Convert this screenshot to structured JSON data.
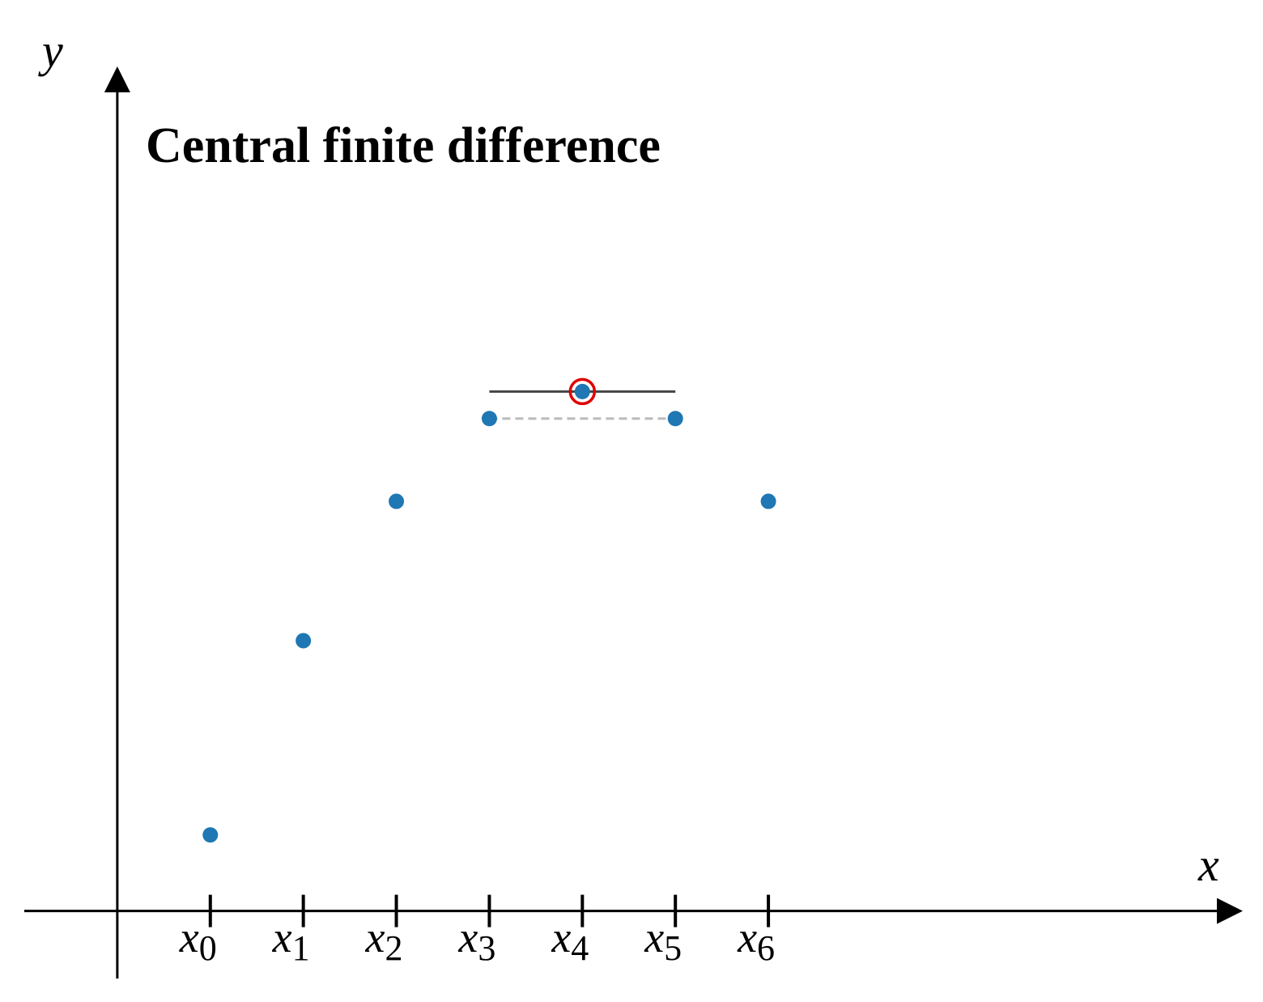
{
  "chart_data": {
    "type": "scatter",
    "title": "Central finite difference",
    "x_label": "x",
    "y_label": "y",
    "x": [
      1,
      2,
      3,
      4,
      5,
      6,
      7
    ],
    "values": [
      0.9,
      3.2,
      4.85,
      5.83,
      6.15,
      5.83,
      4.85
    ],
    "color": "#1f77b4",
    "highlight_color": "#e00000",
    "xlim": [
      -1,
      12.1
    ],
    "ylim": [
      -0.8,
      10
    ],
    "xticks": [
      1,
      2,
      3,
      4,
      5,
      6,
      7
    ],
    "xtick_labels": [
      {
        "base": "x",
        "sub": "0"
      },
      {
        "base": "x",
        "sub": "1"
      },
      {
        "base": "x",
        "sub": "2"
      },
      {
        "base": "x",
        "sub": "3"
      },
      {
        "base": "x",
        "sub": "4"
      },
      {
        "base": "x",
        "sub": "5"
      },
      {
        "base": "x",
        "sub": "6"
      }
    ]
  }
}
